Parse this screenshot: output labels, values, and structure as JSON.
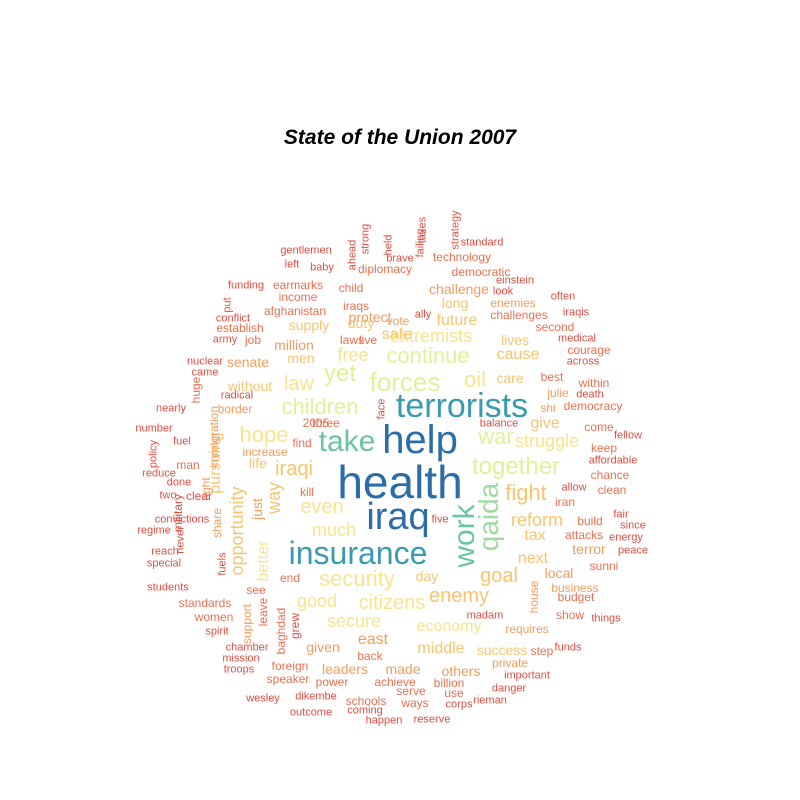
{
  "title": "State of the Union 2007",
  "palette": {
    "c1": "#2B6DA8",
    "c2": "#3A9AAE",
    "c3": "#6BC4A4",
    "c4": "#A2D9A2",
    "c5": "#E3EF9A",
    "c6": "#F6E58E",
    "c7": "#F9C46E",
    "c8": "#F39C5C",
    "c9": "#E8704F",
    "c10": "#DD4E43"
  },
  "words": [
    "health",
    "help",
    "iraq",
    "insurance",
    "terrorists",
    "take",
    "work",
    "qaida",
    "forces",
    "yet",
    "children",
    "continue",
    "together",
    "war",
    "security",
    "oil",
    "hope",
    "fight",
    "iraqi",
    "even",
    "law",
    "citizens",
    "enemy",
    "goal",
    "free",
    "struggle",
    "extremists",
    "much",
    "reform",
    "tax",
    "way",
    "next",
    "secure",
    "economy",
    "good",
    "opportunity",
    "day",
    "cause",
    "care",
    "better",
    "middle",
    "safe",
    "give",
    "future",
    "success",
    "duty",
    "east",
    "supply",
    "pursuing",
    "men",
    "without",
    "senate",
    "lives",
    "just",
    "local",
    "long",
    "life",
    "border",
    "requires",
    "terror",
    "others",
    "given",
    "leaders",
    "made",
    "million",
    "build",
    "protect",
    "share",
    "challenge",
    "support",
    "immigration",
    "private",
    "right",
    "attacks",
    "shi",
    "budget",
    "baghdad",
    "clean",
    "vote",
    "business",
    "enemies",
    "julie",
    "leave",
    "end",
    "increase",
    "afghanistan",
    "house",
    "democratic",
    "technology",
    "back",
    "women",
    "iran",
    "billion",
    "challenges",
    "show",
    "diplomacy",
    "sunni",
    "foreign",
    "achieve",
    "power",
    "standards",
    "serve",
    "see",
    "schools",
    "keep",
    "speaker",
    "ways",
    "income",
    "earmarks",
    "use",
    "establish",
    "democracy",
    "second",
    "best",
    "job",
    "courage",
    "come",
    "clear",
    "chance",
    "child",
    "three",
    "2005",
    "kill",
    "within",
    "iraqs",
    "laws",
    "live",
    "find",
    "step",
    "man",
    "military",
    "grew",
    "huge",
    "fuels",
    "funds",
    "ally",
    "five",
    "face",
    "ahead",
    "strong",
    "taxes",
    "strategy",
    "held",
    "failing",
    "standard",
    "brave",
    "gentlemen",
    "left",
    "baby",
    "funding",
    "einstein",
    "look",
    "often",
    "put",
    "conflict",
    "iraqis",
    "army",
    "medical",
    "nuclear",
    "across",
    "came",
    "radical",
    "death",
    "nearly",
    "number",
    "fuel",
    "balance",
    "fellow",
    "policy",
    "affordable",
    "reduce",
    "done",
    "fair",
    "allow",
    "two",
    "since",
    "convictions",
    "energy",
    "regime",
    "special",
    "reach",
    "never",
    "peace",
    "students",
    "madam",
    "spirit",
    "things",
    "mission",
    "chamber",
    "troops",
    "important",
    "danger",
    "wesley",
    "dikembe",
    "outcome",
    "coming",
    "happen",
    "reserve",
    "corps",
    "rieman"
  ]
}
